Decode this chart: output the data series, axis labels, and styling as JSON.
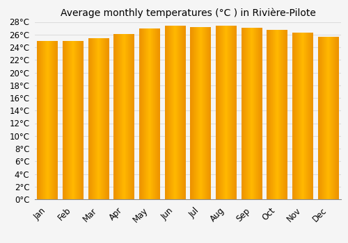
{
  "title": "Average monthly temperatures (°C ) in Rivière-Pilote",
  "months": [
    "Jan",
    "Feb",
    "Mar",
    "Apr",
    "May",
    "Jun",
    "Jul",
    "Aug",
    "Sep",
    "Oct",
    "Nov",
    "Dec"
  ],
  "values": [
    25.0,
    25.0,
    25.4,
    26.1,
    27.0,
    27.4,
    27.2,
    27.4,
    27.1,
    26.7,
    26.3,
    25.6
  ],
  "bar_color_center": "#FFB800",
  "bar_color_edge": "#E07800",
  "ylim": [
    0,
    28
  ],
  "ytick_step": 2,
  "background_color": "#F5F5F5",
  "plot_bg_color": "#F5F5F5",
  "grid_color": "#DDDDDD",
  "title_fontsize": 10,
  "tick_fontsize": 8.5,
  "bar_width": 0.82
}
